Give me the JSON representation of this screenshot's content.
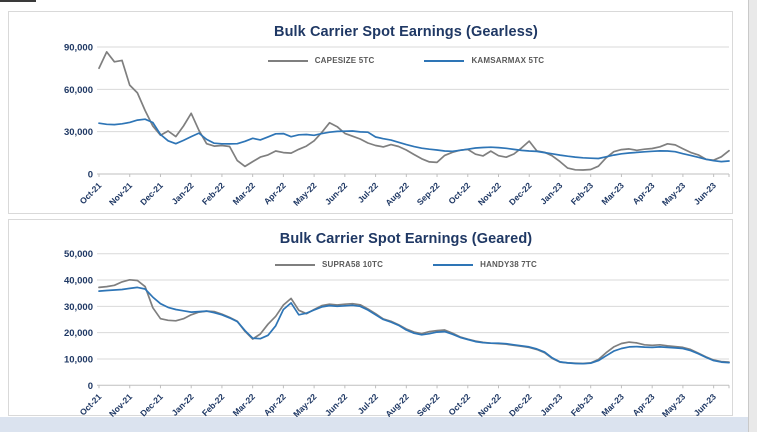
{
  "page": {
    "background": "#ffffff",
    "bottom_strip_color": "#dbe3ef",
    "right_strip_color": "#e9e9e9"
  },
  "styles": {
    "title_color": "#1F3864",
    "axis_label_color": "#1F3864",
    "legend_text_color": "#595959",
    "grid_color": "#D9D9D9",
    "axis_color": "#BFBFBF"
  },
  "chart_data": [
    {
      "type": "line",
      "title": "Bulk Carrier Spot Earnings (Gearless)",
      "legend_position": "top",
      "grid": true,
      "ylim": [
        0,
        90000
      ],
      "y_ticks": [
        "0",
        "30,000",
        "60,000",
        "90,000"
      ],
      "x_tick_labels": [
        "Oct-21",
        "Nov-21",
        "Dec-21",
        "Jan-22",
        "Feb-22",
        "Mar-22",
        "Apr-22",
        "May-22",
        "Jun-22",
        "Jul-22",
        "Aug-22",
        "Sep-22",
        "Oct-22",
        "Nov-22",
        "Dec-22",
        "Jan-23",
        "Feb-23",
        "Mar-23",
        "Apr-23",
        "May-23",
        "Jun-23"
      ],
      "x_unit": "weekly observations, Oct-21 to Jun-23",
      "series": [
        {
          "name": "CAPESIZE 5TC",
          "color": "#7F7F7F",
          "values": [
            75000,
            86500,
            79500,
            80500,
            63000,
            57500,
            45000,
            34000,
            27500,
            30500,
            26500,
            34000,
            43000,
            31000,
            21500,
            19800,
            20200,
            19500,
            9500,
            5400,
            8800,
            12000,
            13500,
            16300,
            15200,
            14800,
            17500,
            19800,
            23500,
            29500,
            36300,
            33500,
            28800,
            26800,
            24800,
            22000,
            20200,
            19200,
            20800,
            19500,
            17000,
            13800,
            10800,
            8600,
            8200,
            13200,
            15400,
            16900,
            17400,
            14000,
            12800,
            16200,
            13000,
            11900,
            14200,
            18500,
            23300,
            16300,
            15400,
            12800,
            8800,
            4200,
            3000,
            2800,
            3200,
            5500,
            11500,
            15800,
            17300,
            17800,
            16800,
            17600,
            18100,
            19300,
            21400,
            20600,
            17900,
            15300,
            13500,
            10400,
            9800,
            12200,
            16500
          ]
        },
        {
          "name": "KAMSARMAX 5TC",
          "color": "#2E75B6",
          "values": [
            36000,
            35200,
            35000,
            35600,
            36600,
            38200,
            38800,
            36500,
            28000,
            23500,
            21500,
            23800,
            26500,
            29000,
            24500,
            21800,
            21400,
            21300,
            21500,
            23200,
            25300,
            24200,
            26300,
            28500,
            28600,
            26400,
            27800,
            28000,
            27400,
            28600,
            29600,
            30200,
            30300,
            30500,
            29800,
            29600,
            26200,
            25000,
            24000,
            22500,
            20800,
            19400,
            18300,
            17600,
            17000,
            16300,
            16100,
            16800,
            17600,
            18400,
            18800,
            19000,
            18700,
            18200,
            17400,
            16700,
            16300,
            16000,
            15200,
            14300,
            13400,
            12600,
            12000,
            11500,
            11200,
            11000,
            12200,
            13400,
            14300,
            14900,
            15300,
            15700,
            16100,
            16400,
            16300,
            15800,
            14400,
            13200,
            11800,
            10400,
            9400,
            8800,
            9200
          ]
        }
      ]
    },
    {
      "type": "line",
      "title": "Bulk Carrier Spot Earnings (Geared)",
      "legend_position": "top",
      "grid": true,
      "ylim": [
        0,
        50000
      ],
      "y_ticks": [
        "0",
        "10,000",
        "20,000",
        "30,000",
        "40,000",
        "50,000"
      ],
      "x_tick_labels": [
        "Oct-21",
        "Nov-21",
        "Dec-21",
        "Jan-22",
        "Feb-22",
        "Mar-22",
        "Apr-22",
        "May-22",
        "Jun-22",
        "Jul-22",
        "Aug-22",
        "Sep-22",
        "Oct-22",
        "Nov-22",
        "Dec-22",
        "Jan-23",
        "Feb-23",
        "Mar-23",
        "Apr-23",
        "May-23",
        "Jun-23"
      ],
      "x_unit": "weekly observations, Oct-21 to Jun-23",
      "series": [
        {
          "name": "SUPRA58 10TC",
          "color": "#7F7F7F",
          "values": [
            37200,
            37500,
            38000,
            39300,
            40100,
            39800,
            37500,
            29500,
            25300,
            24700,
            24500,
            25300,
            26800,
            27800,
            28200,
            28000,
            27000,
            25800,
            24300,
            20500,
            17600,
            19500,
            23200,
            26200,
            30500,
            33000,
            28500,
            27200,
            28800,
            30300,
            30800,
            30500,
            30800,
            31000,
            30600,
            29000,
            27200,
            25200,
            24300,
            23000,
            21400,
            20200,
            19600,
            20400,
            20800,
            21000,
            19800,
            18400,
            17500,
            16800,
            16300,
            16000,
            15800,
            15600,
            15200,
            14800,
            14400,
            13600,
            12400,
            10200,
            8800,
            8500,
            8400,
            8300,
            8500,
            9800,
            12400,
            14600,
            15900,
            16400,
            16100,
            15400,
            15200,
            15400,
            15000,
            14700,
            14400,
            13600,
            12200,
            10800,
            9600,
            9000,
            8800
          ]
        },
        {
          "name": "HANDY38 7TC",
          "color": "#2E75B6",
          "values": [
            35800,
            36000,
            36200,
            36400,
            36800,
            37200,
            36600,
            33500,
            31000,
            29600,
            28800,
            28300,
            27800,
            28000,
            28200,
            27600,
            26800,
            25600,
            24200,
            20800,
            17900,
            17700,
            19000,
            22600,
            28800,
            31300,
            26800,
            27400,
            28600,
            29800,
            30300,
            30000,
            30200,
            30400,
            30000,
            28600,
            26800,
            25000,
            24000,
            22800,
            21000,
            19800,
            19200,
            19600,
            20200,
            20400,
            19400,
            18200,
            17400,
            16600,
            16200,
            16000,
            16000,
            15800,
            15400,
            15000,
            14600,
            13800,
            12600,
            10400,
            8900,
            8500,
            8300,
            8200,
            8400,
            9400,
            11200,
            13000,
            14000,
            14600,
            14700,
            14500,
            14400,
            14600,
            14400,
            14200,
            14000,
            13200,
            12000,
            10600,
            9400,
            8800,
            8600
          ]
        }
      ]
    }
  ]
}
